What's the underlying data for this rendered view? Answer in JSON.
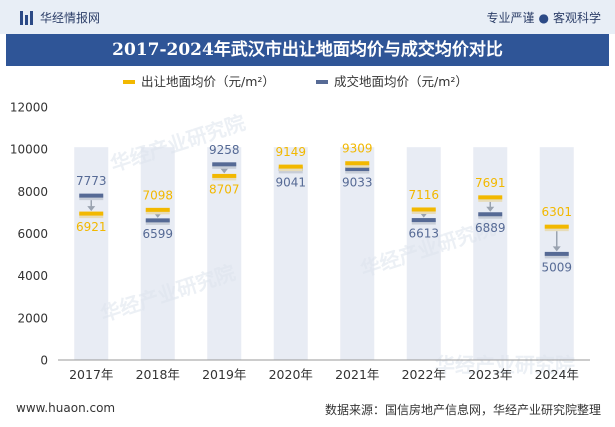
{
  "header": {
    "brand": "华经情报网",
    "slogan_left": "专业严谨",
    "slogan_sep": "●",
    "slogan_right": "客观科学"
  },
  "footer": {
    "website": "www.huaon.com",
    "source": "数据来源：国信房地产信息网，华经产业研究院整理"
  },
  "watermark": "华经产业研究院",
  "colors": {
    "series_a": "#f2b800",
    "series_b": "#566a95",
    "column_bg": "#e8ecf4",
    "title_bg": "#2f5597"
  },
  "chart_data": {
    "type": "range_marker",
    "title": "2017-2024年武汉市出让地面均价与成交均价对比",
    "categories": [
      "2017年",
      "2018年",
      "2019年",
      "2020年",
      "2021年",
      "2022年",
      "2023年",
      "2024年"
    ],
    "series": [
      {
        "name": "出让地面均价（元/m²）",
        "values": [
          6921,
          7098,
          8707,
          9149,
          9309,
          7116,
          7691,
          6301
        ]
      },
      {
        "name": "成交地面均价（元/m²）",
        "values": [
          7773,
          6599,
          9258,
          9041,
          9033,
          6613,
          6889,
          5009
        ]
      }
    ],
    "ylim": [
      0,
      12000
    ],
    "yticks": [
      0,
      2000,
      4000,
      6000,
      8000,
      10000,
      12000
    ],
    "legend_position": "top"
  }
}
